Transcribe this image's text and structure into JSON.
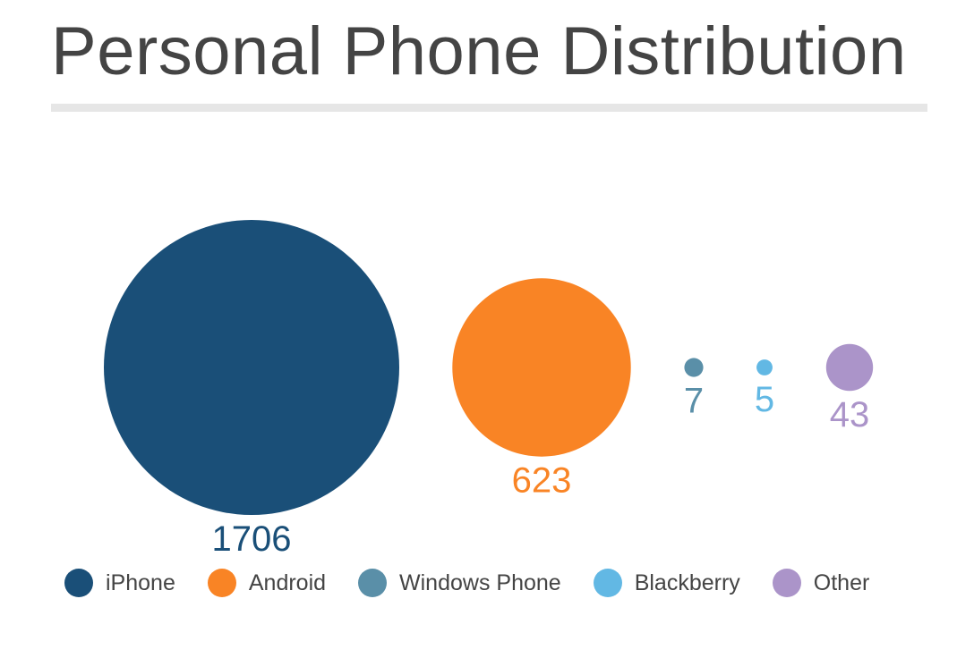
{
  "chart_data": {
    "type": "bubble",
    "title": "Personal Phone Distribution",
    "categories": [
      "iPhone",
      "Android",
      "Windows Phone",
      "Blackberry",
      "Other"
    ],
    "values": [
      1706,
      623,
      7,
      5,
      43
    ],
    "colors": [
      "#1a4f78",
      "#f98425",
      "#5a8fa8",
      "#62b8e4",
      "#ab94c9"
    ],
    "legend_position": "bottom",
    "grid": false
  }
}
